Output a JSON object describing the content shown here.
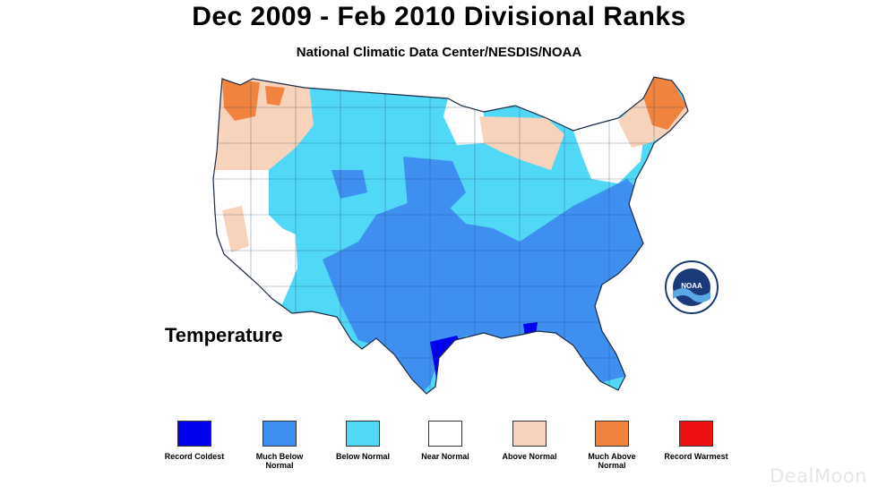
{
  "title": "Dec 2009 - Feb 2010 Divisional Ranks",
  "subtitle": "National Climatic Data Center/NESDIS/NOAA",
  "variable": "Temperature",
  "logo": {
    "text": "NOAA"
  },
  "legend": [
    {
      "label": "Record Coldest",
      "color": "#0000ee"
    },
    {
      "label": "Much Below Normal",
      "color": "#3f8ff0"
    },
    {
      "label": "Below Normal",
      "color": "#50d8f6"
    },
    {
      "label": "Near Normal",
      "color": "#ffffff"
    },
    {
      "label": "Above Normal",
      "color": "#f7d3bc"
    },
    {
      "label": "Much Above Normal",
      "color": "#f0843f"
    },
    {
      "label": "Record Warmest",
      "color": "#ee1111"
    }
  ],
  "watermark": "DealMoon"
}
